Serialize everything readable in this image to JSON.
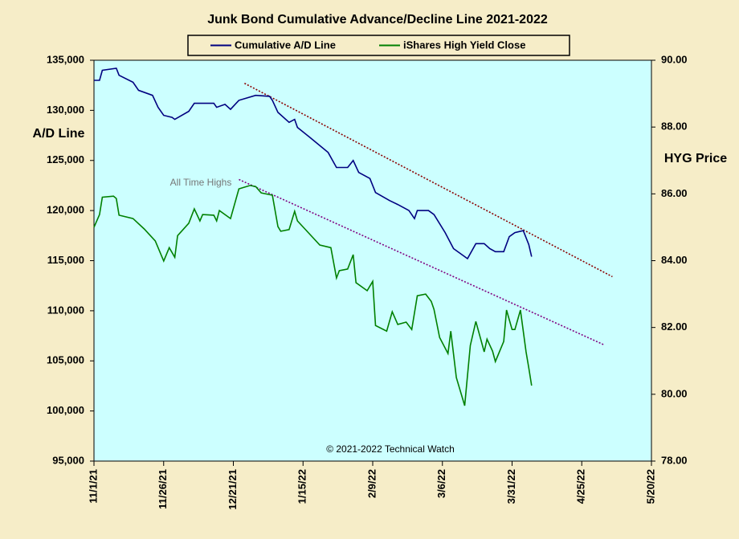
{
  "chart_data": {
    "type": "line",
    "title": "Junk Bond Cumulative Advance/Decline Line 2021-2022",
    "ylabel": "A/D Line",
    "y2label": "HYG Price",
    "annotations": [
      "All Time Highs",
      "© 2021-2022 Technical Watch"
    ],
    "xlim": [
      "2021-11-01",
      "2022-05-20"
    ],
    "xticks": [
      {
        "value": "2021-11-01",
        "label": "11/1/21"
      },
      {
        "value": "2021-11-26",
        "label": "11/26/21"
      },
      {
        "value": "2021-12-21",
        "label": "12/21/21"
      },
      {
        "value": "2022-01-15",
        "label": "1/15/22"
      },
      {
        "value": "2022-02-09",
        "label": "2/9/22"
      },
      {
        "value": "2022-03-06",
        "label": "3/6/22"
      },
      {
        "value": "2022-03-31",
        "label": "3/31/22"
      },
      {
        "value": "2022-04-25",
        "label": "4/25/22"
      },
      {
        "value": "2022-05-20",
        "label": "5/20/22"
      }
    ],
    "ylim": [
      95000,
      135000
    ],
    "yticks": [
      {
        "value": 95000,
        "label": "95,000"
      },
      {
        "value": 100000,
        "label": "100,000"
      },
      {
        "value": 105000,
        "label": "105,000"
      },
      {
        "value": 110000,
        "label": "110,000"
      },
      {
        "value": 115000,
        "label": "115,000"
      },
      {
        "value": 120000,
        "label": "120,000"
      },
      {
        "value": 125000,
        "label": "125,000"
      },
      {
        "value": 130000,
        "label": "130,000"
      },
      {
        "value": 135000,
        "label": "135,000"
      }
    ],
    "y2lim": [
      78,
      90
    ],
    "y2ticks": [
      {
        "value": 78,
        "label": "78.00"
      },
      {
        "value": 80,
        "label": "80.00"
      },
      {
        "value": 82,
        "label": "82.00"
      },
      {
        "value": 84,
        "label": "84.00"
      },
      {
        "value": 86,
        "label": "86.00"
      },
      {
        "value": 88,
        "label": "88.00"
      },
      {
        "value": 90,
        "label": "90.00"
      }
    ],
    "series": [
      {
        "name": "Cumulative A/D Line",
        "color": "#000080",
        "x": [
          "2021-11-01",
          "2021-11-03",
          "2021-11-04",
          "2021-11-09",
          "2021-11-10",
          "2021-11-15",
          "2021-11-17",
          "2021-11-22",
          "2021-11-24",
          "2021-11-26",
          "2021-11-29",
          "2021-11-30",
          "2021-12-05",
          "2021-12-07",
          "2021-12-14",
          "2021-12-15",
          "2021-12-18",
          "2021-12-20",
          "2021-12-23",
          "2021-12-29",
          "2022-01-03",
          "2022-01-04",
          "2022-01-06",
          "2022-01-10",
          "2022-01-12",
          "2022-01-13",
          "2022-01-17",
          "2022-01-24",
          "2022-01-27",
          "2022-01-31",
          "2022-02-02",
          "2022-02-04",
          "2022-02-08",
          "2022-02-10",
          "2022-02-15",
          "2022-02-18",
          "2022-02-22",
          "2022-02-24",
          "2022-02-25",
          "2022-03-01",
          "2022-03-03",
          "2022-03-07",
          "2022-03-10",
          "2022-03-15",
          "2022-03-18",
          "2022-03-21",
          "2022-03-23",
          "2022-03-25",
          "2022-03-28",
          "2022-03-30",
          "2022-04-01",
          "2022-04-04",
          "2022-04-06",
          "2022-04-07"
        ],
        "values": [
          133000,
          133000,
          134000,
          134200,
          133500,
          132800,
          132000,
          131500,
          130300,
          129500,
          129300,
          129100,
          129900,
          130700,
          130700,
          130300,
          130600,
          130100,
          131000,
          131500,
          131400,
          131000,
          129800,
          128800,
          129100,
          128300,
          127400,
          125800,
          124300,
          124300,
          125000,
          123800,
          123200,
          121800,
          121000,
          120600,
          120000,
          119200,
          120000,
          120000,
          119600,
          117800,
          116200,
          115200,
          116700,
          116700,
          116200,
          115900,
          115900,
          117400,
          117800,
          118000,
          116600,
          115400
        ]
      },
      {
        "name": "iShares High Yield Close",
        "color": "#008000",
        "axis": "y2",
        "x": [
          "2021-11-01",
          "2021-11-03",
          "2021-11-04",
          "2021-11-08",
          "2021-11-09",
          "2021-11-10",
          "2021-11-15",
          "2021-11-19",
          "2021-11-23",
          "2021-11-26",
          "2021-11-28",
          "2021-11-30",
          "2021-12-01",
          "2021-12-05",
          "2021-12-07",
          "2021-12-09",
          "2021-12-10",
          "2021-12-14",
          "2021-12-15",
          "2021-12-16",
          "2021-12-20",
          "2021-12-23",
          "2021-12-27",
          "2021-12-29",
          "2021-12-31",
          "2022-01-04",
          "2022-01-06",
          "2022-01-07",
          "2022-01-10",
          "2022-01-12",
          "2022-01-13",
          "2022-01-17",
          "2022-01-21",
          "2022-01-25",
          "2022-01-27",
          "2022-01-28",
          "2022-01-31",
          "2022-02-02",
          "2022-02-03",
          "2022-02-07",
          "2022-02-09",
          "2022-02-10",
          "2022-02-14",
          "2022-02-16",
          "2022-02-18",
          "2022-02-21",
          "2022-02-23",
          "2022-02-25",
          "2022-02-28",
          "2022-03-02",
          "2022-03-03",
          "2022-03-05",
          "2022-03-08",
          "2022-03-09",
          "2022-03-11",
          "2022-03-14",
          "2022-03-16",
          "2022-03-18",
          "2022-03-21",
          "2022-03-22",
          "2022-03-24",
          "2022-03-25",
          "2022-03-28",
          "2022-03-29",
          "2022-03-31",
          "2022-04-01",
          "2022-04-03",
          "2022-04-05",
          "2022-04-06",
          "2022-04-07"
        ],
        "values": [
          85.0,
          85.38,
          85.9,
          85.93,
          85.86,
          85.36,
          85.26,
          84.95,
          84.59,
          83.99,
          84.39,
          84.1,
          84.75,
          85.12,
          85.55,
          85.19,
          85.38,
          85.36,
          85.19,
          85.5,
          85.26,
          86.15,
          86.25,
          86.22,
          86.03,
          85.96,
          85.02,
          84.88,
          84.93,
          85.48,
          85.19,
          84.83,
          84.47,
          84.39,
          83.48,
          83.7,
          83.75,
          84.18,
          83.34,
          83.1,
          83.38,
          82.06,
          81.89,
          82.47,
          82.09,
          82.16,
          81.94,
          82.95,
          83.0,
          82.78,
          82.54,
          81.7,
          81.22,
          81.89,
          80.5,
          79.66,
          81.46,
          82.18,
          81.27,
          81.65,
          81.29,
          80.98,
          81.58,
          82.52,
          81.94,
          81.94,
          82.52,
          81.27,
          80.79,
          80.26
        ]
      }
    ],
    "trend_lines": [
      {
        "color": "#8b0000",
        "x": [
          "2021-12-25",
          "2022-05-06"
        ],
        "values": [
          132700,
          113400
        ]
      },
      {
        "color": "#800080",
        "x": [
          "2021-12-23",
          "2022-05-03"
        ],
        "values": [
          123100,
          106600
        ]
      }
    ],
    "legend": "top"
  }
}
